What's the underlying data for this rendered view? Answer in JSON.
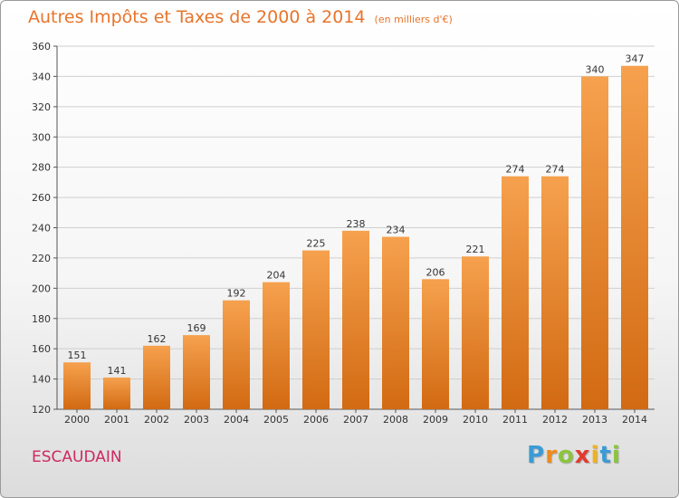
{
  "title": "Autres Impôts et Taxes de 2000 à 2014",
  "subtitle": "(en milliers d'€)",
  "commune": "ESCAUDAIN",
  "logo": {
    "letters": [
      "P",
      "r",
      "o",
      "x",
      "i",
      "t",
      "i"
    ],
    "colors": [
      "#3a9bd5",
      "#f08a1c",
      "#8bc53f",
      "#e23b2e",
      "#f2b21c",
      "#3a9bd5",
      "#8bc53f"
    ]
  },
  "colors": {
    "bar_light": "#f6a14e",
    "bar_dark": "#d26a12",
    "title": "#e8742a",
    "commune": "#cc2a60",
    "grid": "#cfcfcf"
  },
  "chart_data": {
    "type": "bar",
    "categories": [
      "2000",
      "2001",
      "2002",
      "2003",
      "2004",
      "2005",
      "2006",
      "2007",
      "2008",
      "2009",
      "2010",
      "2011",
      "2012",
      "2013",
      "2014"
    ],
    "values": [
      151,
      141,
      162,
      169,
      192,
      204,
      225,
      238,
      234,
      206,
      221,
      274,
      274,
      340,
      347
    ],
    "data_labels": [
      "151",
      "141",
      "162",
      "169",
      "192",
      "204",
      "225",
      "238",
      "234",
      "206",
      "221",
      "274",
      "274",
      "340",
      "347"
    ],
    "yticks": [
      120,
      140,
      160,
      180,
      200,
      220,
      240,
      260,
      280,
      300,
      320,
      340,
      360
    ],
    "ylim": [
      120,
      360
    ],
    "grid": true,
    "legend": "none"
  }
}
